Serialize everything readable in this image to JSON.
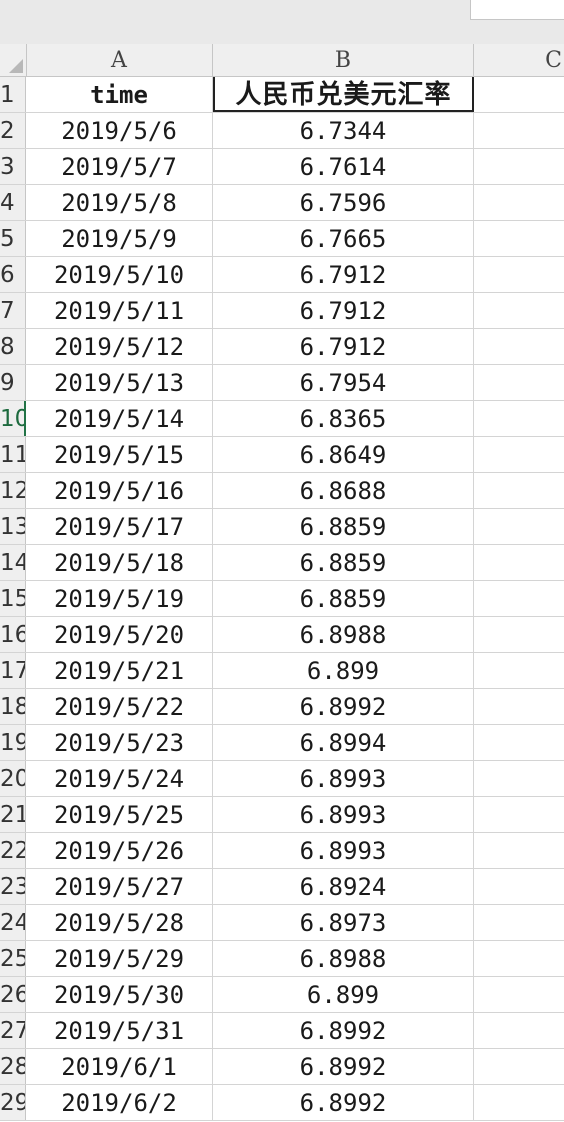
{
  "columns": [
    "A",
    "B",
    "C"
  ],
  "header_row": {
    "row_number": "1",
    "a": "time",
    "b": "人民币兑美元汇率"
  },
  "rows": [
    {
      "n": "2",
      "date": "2019/5/6",
      "rate": "6.7344"
    },
    {
      "n": "3",
      "date": "2019/5/7",
      "rate": "6.7614"
    },
    {
      "n": "4",
      "date": "2019/5/8",
      "rate": "6.7596"
    },
    {
      "n": "5",
      "date": "2019/5/9",
      "rate": "6.7665"
    },
    {
      "n": "6",
      "date": "2019/5/10",
      "rate": "6.7912"
    },
    {
      "n": "7",
      "date": "2019/5/11",
      "rate": "6.7912"
    },
    {
      "n": "8",
      "date": "2019/5/12",
      "rate": "6.7912"
    },
    {
      "n": "9",
      "date": "2019/5/13",
      "rate": "6.7954"
    },
    {
      "n": "10",
      "date": "2019/5/14",
      "rate": "6.8365",
      "active": true
    },
    {
      "n": "11",
      "date": "2019/5/15",
      "rate": "6.8649"
    },
    {
      "n": "12",
      "date": "2019/5/16",
      "rate": "6.8688"
    },
    {
      "n": "13",
      "date": "2019/5/17",
      "rate": "6.8859"
    },
    {
      "n": "14",
      "date": "2019/5/18",
      "rate": "6.8859"
    },
    {
      "n": "15",
      "date": "2019/5/19",
      "rate": "6.8859"
    },
    {
      "n": "16",
      "date": "2019/5/20",
      "rate": "6.8988"
    },
    {
      "n": "17",
      "date": "2019/5/21",
      "rate": "6.899"
    },
    {
      "n": "18",
      "date": "2019/5/22",
      "rate": "6.8992"
    },
    {
      "n": "19",
      "date": "2019/5/23",
      "rate": "6.8994"
    },
    {
      "n": "20",
      "date": "2019/5/24",
      "rate": "6.8993"
    },
    {
      "n": "21",
      "date": "2019/5/25",
      "rate": "6.8993"
    },
    {
      "n": "22",
      "date": "2019/5/26",
      "rate": "6.8993"
    },
    {
      "n": "23",
      "date": "2019/5/27",
      "rate": "6.8924"
    },
    {
      "n": "24",
      "date": "2019/5/28",
      "rate": "6.8973"
    },
    {
      "n": "25",
      "date": "2019/5/29",
      "rate": "6.8988"
    },
    {
      "n": "26",
      "date": "2019/5/30",
      "rate": "6.899"
    },
    {
      "n": "27",
      "date": "2019/5/31",
      "rate": "6.8992"
    },
    {
      "n": "28",
      "date": "2019/6/1",
      "rate": "6.8992"
    },
    {
      "n": "29",
      "date": "2019/6/2",
      "rate": "6.8992"
    }
  ]
}
